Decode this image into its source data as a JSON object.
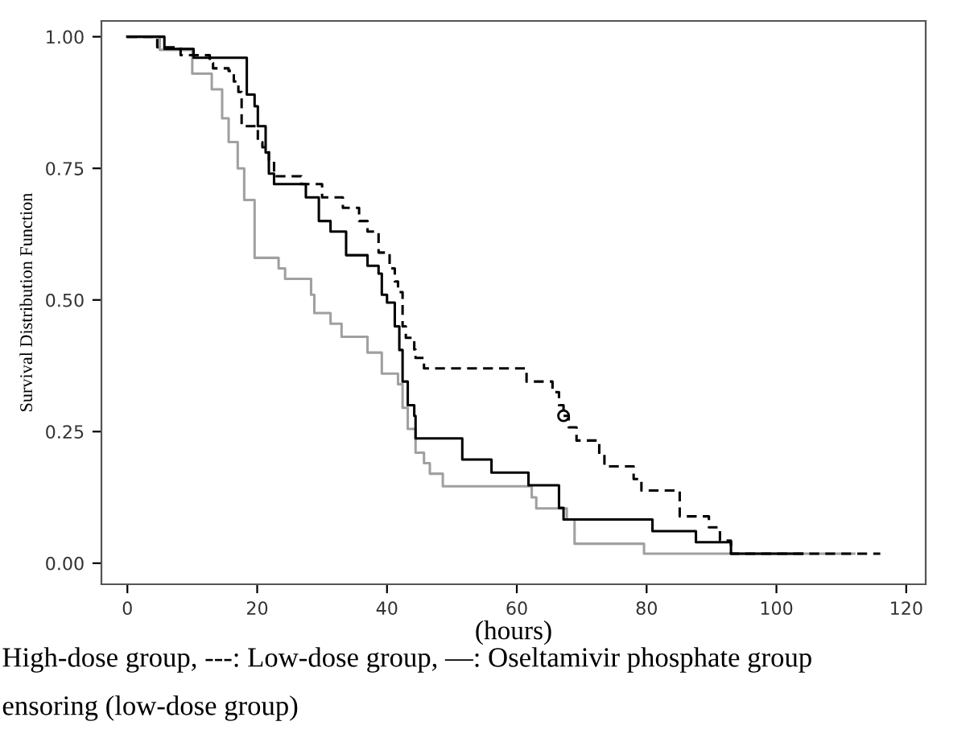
{
  "chart_data": {
    "type": "step",
    "xlabel": "(hours)",
    "ylabel": "Survival Distribution Function",
    "xlim": [
      -4,
      123
    ],
    "ylim": [
      -0.04,
      1.03
    ],
    "xticks": [
      0,
      20,
      40,
      60,
      80,
      100,
      120
    ],
    "yticks": [
      {
        "value": 0,
        "label": "0.00"
      },
      {
        "value": 0.25,
        "label": "0.25"
      },
      {
        "value": 0.5,
        "label": "0.50"
      },
      {
        "value": 0.75,
        "label": "0.75"
      },
      {
        "value": 1,
        "label": "1.00"
      }
    ],
    "grid": false,
    "legend": false,
    "annotations": [
      "High-dose group, ---: Low-dose group, —: Oseltamivir phosphate group",
      "ensoring (low-dose group)"
    ],
    "series": [
      {
        "color": "#a0a0a0",
        "line_style": "solid",
        "x": [
          0,
          5,
          10,
          13,
          14.6,
          15.6,
          17,
          18,
          19.6,
          23.3,
          24.3,
          28.3,
          28.8,
          31.3,
          33,
          37,
          39.2,
          41.7,
          42.4,
          43.2,
          44.4,
          45.7,
          46.6,
          48.6,
          62.3,
          63,
          67.7,
          68.9,
          79.6,
          112
        ],
        "values": [
          1,
          0.975,
          0.93,
          0.9,
          0.845,
          0.8,
          0.75,
          0.69,
          0.58,
          0.56,
          0.54,
          0.51,
          0.475,
          0.455,
          0.43,
          0.4,
          0.36,
          0.34,
          0.295,
          0.255,
          0.21,
          0.19,
          0.17,
          0.146,
          0.125,
          0.104,
          0.083,
          0.037,
          0.018,
          0.018
        ]
      },
      {
        "color": "#000000",
        "line_style": "dashed",
        "x": [
          0,
          4.6,
          8.2,
          12.7,
          13.2,
          15.6,
          16.4,
          17.1,
          17.6,
          20.1,
          20.8,
          21.8,
          22.6,
          26.8,
          30,
          33.2,
          35.7,
          37,
          38.7,
          40.4,
          41.2,
          41.7,
          42.4,
          42.9,
          44.2,
          44.4,
          45.7,
          61.5,
          65.5,
          66.5,
          67.2,
          68,
          69.2,
          72.7,
          73.5,
          78,
          79.2,
          85.1,
          89.6,
          91.3,
          93,
          116
        ],
        "values": [
          1,
          0.98,
          0.965,
          0.95,
          0.94,
          0.935,
          0.915,
          0.895,
          0.83,
          0.8,
          0.79,
          0.765,
          0.735,
          0.72,
          0.695,
          0.675,
          0.65,
          0.63,
          0.59,
          0.56,
          0.535,
          0.515,
          0.45,
          0.428,
          0.406,
          0.39,
          0.37,
          0.345,
          0.325,
          0.3,
          0.28,
          0.258,
          0.233,
          0.207,
          0.184,
          0.16,
          0.138,
          0.089,
          0.068,
          0.043,
          0.018,
          0.018
        ]
      },
      {
        "color": "#000000",
        "line_style": "solid",
        "x": [
          0,
          5.7,
          10.2,
          18.4,
          19.6,
          20.1,
          21.3,
          21.8,
          22.6,
          27.5,
          29.5,
          31.3,
          33.7,
          37,
          38.7,
          39.2,
          40,
          41.2,
          41.9,
          42.4,
          43.2,
          44.2,
          44.4,
          51.6,
          56.1,
          61.8,
          66.5,
          67.2,
          80.9,
          87.6,
          93,
          104
        ],
        "values": [
          1,
          0.977,
          0.96,
          0.89,
          0.868,
          0.83,
          0.78,
          0.74,
          0.72,
          0.695,
          0.65,
          0.63,
          0.585,
          0.565,
          0.55,
          0.51,
          0.495,
          0.45,
          0.405,
          0.345,
          0.3,
          0.28,
          0.237,
          0.197,
          0.172,
          0.148,
          0.105,
          0.083,
          0.061,
          0.04,
          0.018,
          0.018
        ]
      },
      {
        "type": "scatter",
        "color": "#000000",
        "marker": "circle",
        "x": [
          67.2
        ],
        "values": [
          0.28
        ]
      }
    ]
  }
}
